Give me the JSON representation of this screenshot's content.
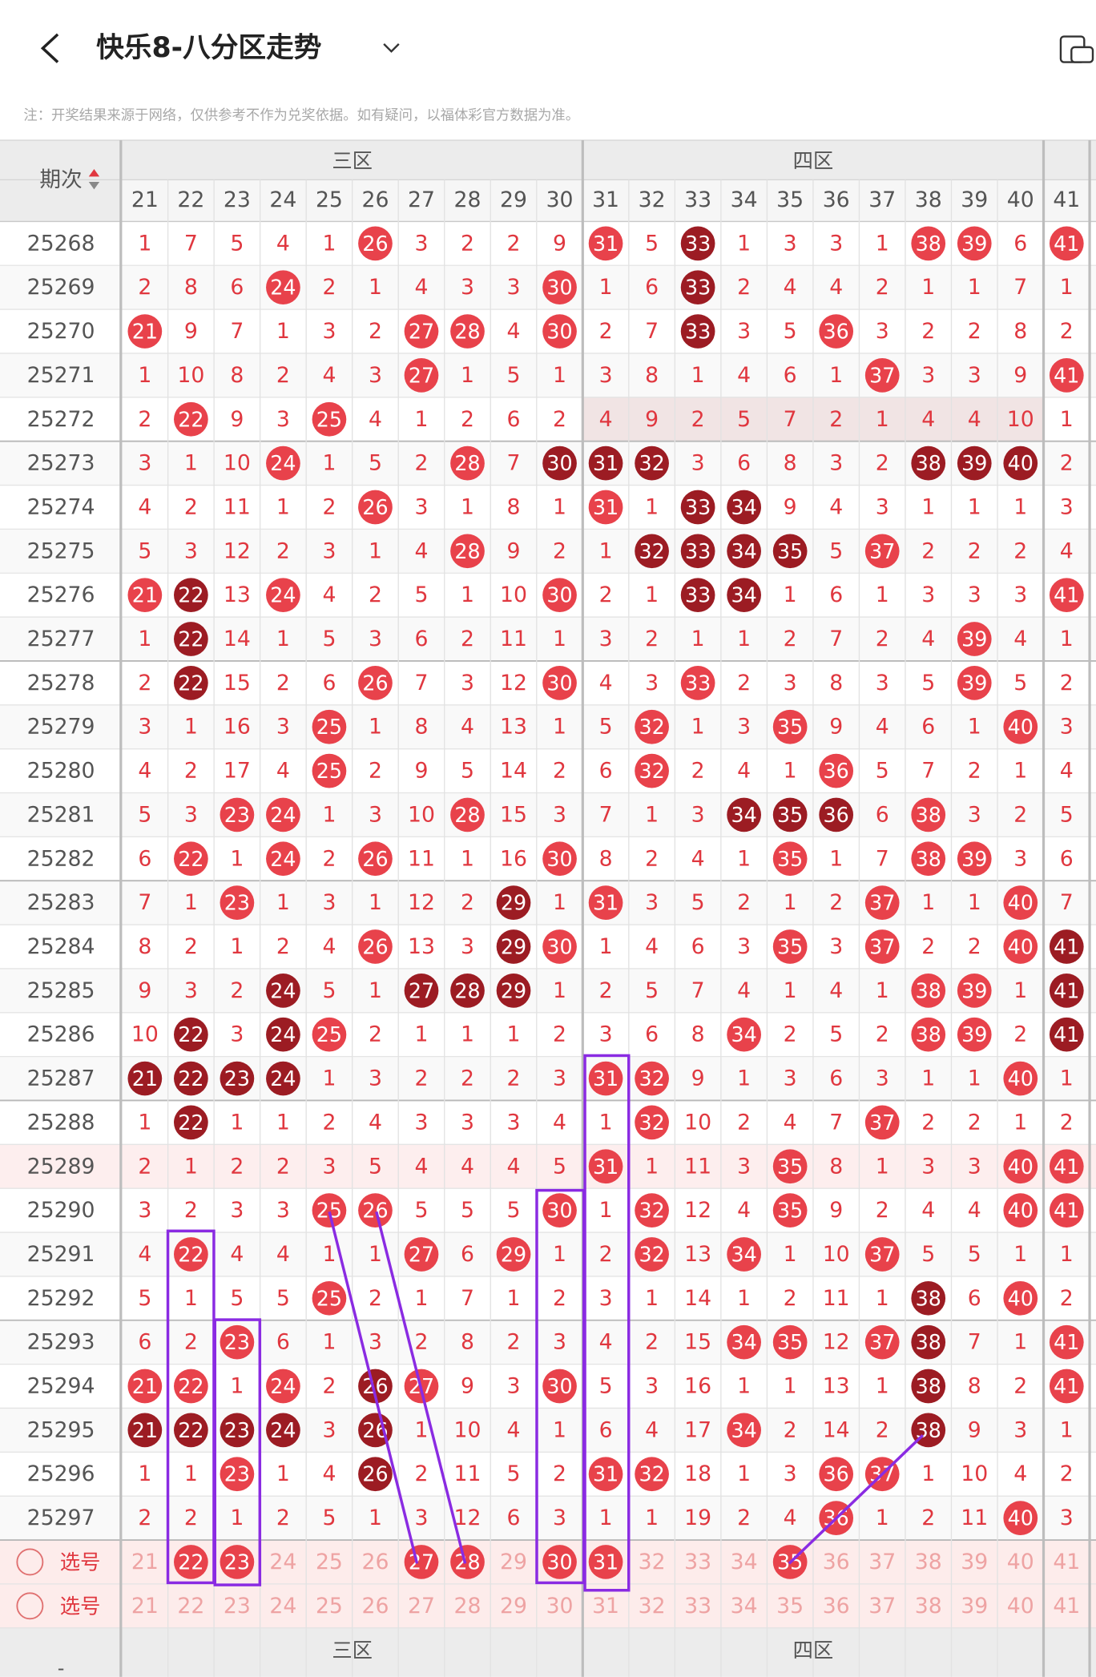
{
  "header": {
    "title": "快乐8-八分区走势"
  },
  "note": "注：开奖结果来源于网络，仅供参考不作为兑奖依据。如有疑问，以福体彩官方数据为准。",
  "table": {
    "period_header": "期次",
    "zones": [
      "三区",
      "四区"
    ],
    "columns": [
      21,
      22,
      23,
      24,
      25,
      26,
      27,
      28,
      29,
      30,
      31,
      32,
      33,
      34,
      35,
      36,
      37,
      38,
      39,
      40,
      41
    ],
    "rows": [
      {
        "period": "25268",
        "values": [
          1,
          7,
          5,
          4,
          1,
          26,
          3,
          2,
          2,
          9,
          31,
          5,
          33,
          1,
          3,
          3,
          1,
          38,
          39,
          6,
          41
        ],
        "dark": [
          33
        ]
      },
      {
        "period": "25269",
        "values": [
          2,
          8,
          6,
          24,
          2,
          1,
          4,
          3,
          3,
          30,
          1,
          6,
          33,
          2,
          4,
          4,
          2,
          1,
          1,
          7,
          1
        ],
        "dark": [
          33
        ]
      },
      {
        "period": "25270",
        "values": [
          21,
          9,
          7,
          1,
          3,
          2,
          27,
          28,
          4,
          30,
          2,
          7,
          33,
          3,
          5,
          36,
          3,
          2,
          2,
          8,
          2
        ],
        "dark": [
          33
        ]
      },
      {
        "period": "25271",
        "values": [
          1,
          10,
          8,
          2,
          4,
          3,
          27,
          1,
          5,
          1,
          3,
          8,
          1,
          4,
          6,
          1,
          37,
          3,
          3,
          9,
          41
        ],
        "dark": []
      },
      {
        "period": "25272",
        "values": [
          2,
          22,
          9,
          3,
          25,
          4,
          1,
          2,
          6,
          2,
          4,
          9,
          2,
          5,
          7,
          2,
          1,
          4,
          4,
          10,
          1
        ],
        "dark": []
      },
      {
        "period": "25273",
        "values": [
          3,
          1,
          10,
          24,
          1,
          5,
          2,
          28,
          7,
          30,
          31,
          32,
          3,
          6,
          8,
          3,
          2,
          38,
          39,
          40,
          2
        ],
        "dark": [
          30,
          31,
          32,
          38,
          39,
          40
        ]
      },
      {
        "period": "25274",
        "values": [
          4,
          2,
          11,
          1,
          2,
          26,
          3,
          1,
          8,
          1,
          31,
          1,
          33,
          34,
          9,
          4,
          3,
          1,
          1,
          1,
          3
        ],
        "dark": [
          33,
          34
        ]
      },
      {
        "period": "25275",
        "values": [
          5,
          3,
          12,
          2,
          3,
          1,
          4,
          28,
          9,
          2,
          1,
          32,
          33,
          34,
          35,
          5,
          37,
          2,
          2,
          2,
          4
        ],
        "dark": [
          32,
          33,
          34,
          35
        ]
      },
      {
        "period": "25276",
        "values": [
          21,
          22,
          13,
          24,
          4,
          2,
          5,
          1,
          10,
          30,
          2,
          1,
          33,
          34,
          1,
          6,
          1,
          3,
          3,
          3,
          41
        ],
        "dark": [
          22,
          33,
          34
        ]
      },
      {
        "period": "25277",
        "values": [
          1,
          22,
          14,
          1,
          5,
          3,
          6,
          2,
          11,
          1,
          3,
          2,
          1,
          1,
          2,
          7,
          2,
          4,
          39,
          4,
          1
        ],
        "dark": [
          22
        ]
      },
      {
        "period": "25278",
        "values": [
          2,
          22,
          15,
          2,
          6,
          26,
          7,
          3,
          12,
          30,
          4,
          3,
          33,
          2,
          3,
          8,
          3,
          5,
          39,
          5,
          2
        ],
        "dark": [
          22
        ]
      },
      {
        "period": "25279",
        "values": [
          3,
          1,
          16,
          3,
          25,
          1,
          8,
          4,
          13,
          1,
          5,
          32,
          1,
          3,
          35,
          9,
          4,
          6,
          1,
          40,
          3
        ],
        "dark": []
      },
      {
        "period": "25280",
        "values": [
          4,
          2,
          17,
          4,
          25,
          2,
          9,
          5,
          14,
          2,
          6,
          32,
          2,
          4,
          1,
          36,
          5,
          7,
          2,
          1,
          4
        ],
        "dark": []
      },
      {
        "period": "25281",
        "values": [
          5,
          3,
          23,
          24,
          1,
          3,
          10,
          28,
          15,
          3,
          7,
          1,
          3,
          34,
          35,
          36,
          6,
          38,
          3,
          2,
          5
        ],
        "dark": [
          34,
          35,
          36
        ]
      },
      {
        "period": "25282",
        "values": [
          6,
          22,
          1,
          24,
          2,
          26,
          11,
          1,
          16,
          30,
          8,
          2,
          4,
          1,
          35,
          1,
          7,
          38,
          39,
          3,
          6
        ],
        "dark": []
      },
      {
        "period": "25283",
        "values": [
          7,
          1,
          23,
          1,
          3,
          1,
          12,
          2,
          29,
          1,
          31,
          3,
          5,
          2,
          1,
          2,
          37,
          1,
          1,
          40,
          7
        ],
        "dark": [
          29
        ]
      },
      {
        "period": "25284",
        "values": [
          8,
          2,
          1,
          2,
          4,
          26,
          13,
          3,
          29,
          30,
          1,
          4,
          6,
          3,
          35,
          3,
          37,
          2,
          2,
          40,
          41
        ],
        "dark": [
          29,
          41
        ]
      },
      {
        "period": "25285",
        "values": [
          9,
          3,
          2,
          24,
          5,
          1,
          27,
          28,
          29,
          1,
          2,
          5,
          7,
          4,
          1,
          4,
          1,
          38,
          39,
          1,
          41
        ],
        "dark": [
          24,
          27,
          28,
          29,
          41
        ]
      },
      {
        "period": "25286",
        "values": [
          10,
          22,
          3,
          24,
          25,
          2,
          1,
          1,
          1,
          2,
          3,
          6,
          8,
          34,
          2,
          5,
          2,
          38,
          39,
          2,
          41
        ],
        "dark": [
          22,
          24,
          41
        ]
      },
      {
        "period": "25287",
        "values": [
          21,
          22,
          23,
          24,
          1,
          3,
          2,
          2,
          2,
          3,
          31,
          32,
          9,
          1,
          3,
          6,
          3,
          1,
          1,
          40,
          1
        ],
        "dark": [
          21,
          22,
          23,
          24
        ]
      },
      {
        "period": "25288",
        "values": [
          1,
          22,
          1,
          1,
          2,
          4,
          3,
          3,
          3,
          4,
          1,
          32,
          10,
          2,
          4,
          7,
          37,
          2,
          2,
          1,
          2
        ],
        "dark": [
          22
        ]
      },
      {
        "period": "25289",
        "values": [
          2,
          1,
          2,
          2,
          3,
          5,
          4,
          4,
          4,
          5,
          31,
          1,
          11,
          3,
          35,
          8,
          1,
          3,
          3,
          40,
          41
        ],
        "dark": []
      },
      {
        "period": "25290",
        "values": [
          3,
          2,
          3,
          3,
          25,
          26,
          5,
          5,
          5,
          30,
          1,
          32,
          12,
          4,
          35,
          9,
          2,
          4,
          4,
          40,
          41
        ],
        "dark": []
      },
      {
        "period": "25291",
        "values": [
          4,
          22,
          4,
          4,
          1,
          1,
          27,
          6,
          29,
          1,
          2,
          32,
          13,
          34,
          1,
          10,
          37,
          5,
          5,
          1,
          1
        ],
        "dark": []
      },
      {
        "period": "25292",
        "values": [
          5,
          1,
          5,
          5,
          25,
          2,
          1,
          7,
          1,
          2,
          3,
          1,
          14,
          1,
          2,
          11,
          1,
          38,
          6,
          40,
          2
        ],
        "dark": [
          38
        ]
      },
      {
        "period": "25293",
        "values": [
          6,
          2,
          23,
          6,
          1,
          3,
          2,
          8,
          2,
          3,
          4,
          2,
          15,
          34,
          35,
          12,
          37,
          38,
          7,
          1,
          41
        ],
        "dark": [
          38
        ]
      },
      {
        "period": "25294",
        "values": [
          21,
          22,
          1,
          24,
          2,
          26,
          27,
          9,
          3,
          30,
          5,
          3,
          16,
          1,
          1,
          13,
          1,
          38,
          8,
          2,
          41
        ],
        "dark": [
          26,
          38
        ]
      },
      {
        "period": "25295",
        "values": [
          21,
          22,
          23,
          24,
          3,
          26,
          1,
          10,
          4,
          1,
          6,
          4,
          17,
          34,
          2,
          14,
          2,
          38,
          9,
          3,
          1
        ],
        "dark": [
          21,
          22,
          23,
          24,
          26,
          38
        ]
      },
      {
        "period": "25296",
        "values": [
          1,
          1,
          23,
          1,
          4,
          26,
          2,
          11,
          5,
          2,
          31,
          32,
          18,
          1,
          3,
          36,
          37,
          1,
          10,
          4,
          2
        ],
        "dark": [
          26
        ]
      },
      {
        "period": "25297",
        "values": [
          2,
          2,
          1,
          2,
          5,
          1,
          3,
          12,
          6,
          3,
          1,
          1,
          19,
          2,
          4,
          36,
          1,
          2,
          11,
          40,
          3
        ],
        "dark": []
      }
    ],
    "select_rows": [
      {
        "label": "选号",
        "picked": [
          22,
          23,
          27,
          28,
          30,
          31,
          35
        ]
      },
      {
        "label": "选号"
      }
    ],
    "footer_zones": [
      "三区",
      "四区"
    ],
    "footer_period": "-"
  }
}
